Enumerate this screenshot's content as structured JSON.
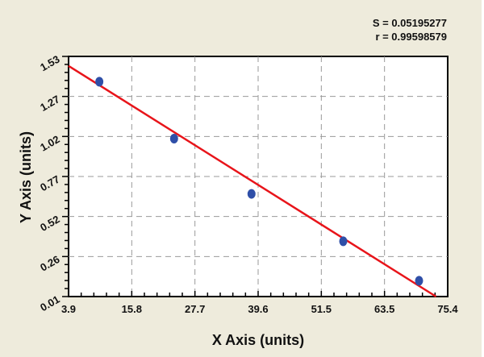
{
  "stats": {
    "s_label": "S = 0.05195277",
    "r_label": "r = 0.99598579"
  },
  "axes": {
    "xlabel": "X Axis (units)",
    "ylabel": "Y Axis (units)",
    "xticks": [
      "3.9",
      "15.8",
      "27.7",
      "39.6",
      "51.5",
      "63.5",
      "75.4"
    ],
    "yticks": [
      "0.01",
      "0.26",
      "0.52",
      "0.77",
      "1.02",
      "1.27",
      "1.53"
    ]
  },
  "colors": {
    "background": "#eeebdc",
    "plot_bg": "#ffffff",
    "points": "#2f4fa8",
    "fit_line": "#e8141a",
    "grid": "#9a9a9a"
  },
  "chart_data": {
    "type": "scatter",
    "title": "",
    "xlabel": "X Axis (units)",
    "ylabel": "Y Axis (units)",
    "xlim": [
      3.9,
      75.4
    ],
    "ylim": [
      0.01,
      1.53
    ],
    "x_tick_labels": [
      "3.9",
      "15.8",
      "27.7",
      "39.6",
      "51.5",
      "63.5",
      "75.4"
    ],
    "y_tick_labels": [
      "0.01",
      "0.26",
      "0.52",
      "0.77",
      "1.02",
      "1.27",
      "1.53"
    ],
    "grid": true,
    "series": [
      {
        "name": "data points",
        "x": [
          9.7,
          23.8,
          38.4,
          55.7,
          70.0
        ],
        "y": [
          1.37,
          1.01,
          0.66,
          0.36,
          0.11
        ]
      },
      {
        "name": "linear fit",
        "type": "line",
        "x": [
          3.9,
          73.2
        ],
        "y": [
          1.47,
          0.01
        ]
      }
    ],
    "annotations": [
      "S = 0.05195277",
      "r = 0.99598579"
    ]
  }
}
